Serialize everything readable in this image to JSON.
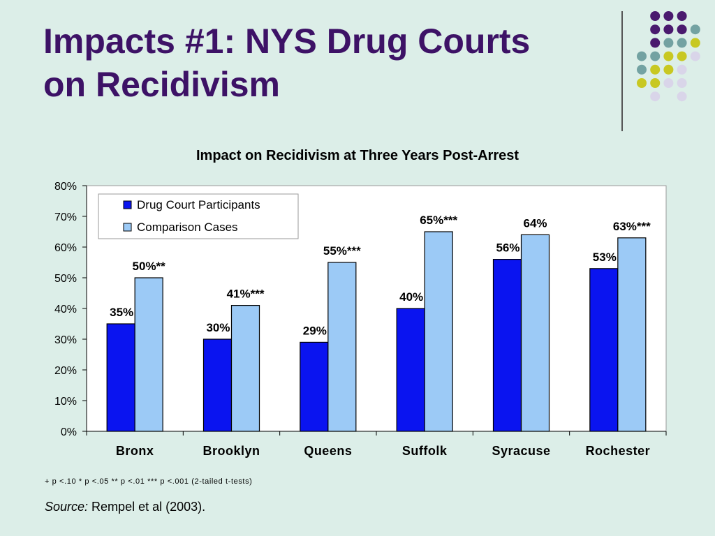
{
  "slide": {
    "title_line1": "Impacts #1: NYS Drug Courts",
    "title_line2": "on Recidivism",
    "footnote": "+ p <.10 * p <.05 ** p <.01 *** p <.001 (2-tailed t-tests)",
    "source_label": "Source:",
    "source_text": " Rempel et al (2003)."
  },
  "decor_colors": {
    "purple": "#4a1a6e",
    "teal": "#73a2a2",
    "yellow": "#c8c822",
    "lavender": "#d9d5e9"
  },
  "chart_data": {
    "type": "bar",
    "title": "Impact on Recidivism at Three Years Post-Arrest",
    "categories": [
      "Bronx",
      "Brooklyn",
      "Queens",
      "Suffolk",
      "Syracuse",
      "Rochester"
    ],
    "series": [
      {
        "name": "Drug Court Participants",
        "color": "#0a14f0",
        "values": [
          35,
          30,
          29,
          40,
          56,
          53
        ],
        "labels": [
          "35%",
          "30%",
          "29%",
          "40%",
          "56%",
          "53%"
        ]
      },
      {
        "name": "Comparison Cases",
        "color": "#9ccaf6",
        "values": [
          50,
          41,
          55,
          65,
          64,
          63
        ],
        "labels": [
          "50%**",
          "41%***",
          "55%***",
          "65%***",
          "64%",
          "63%***"
        ]
      }
    ],
    "ylim": [
      0,
      80
    ],
    "yticks": [
      "0%",
      "10%",
      "20%",
      "30%",
      "40%",
      "50%",
      "60%",
      "70%",
      "80%"
    ],
    "grid": false,
    "legend_position": "top-left"
  }
}
